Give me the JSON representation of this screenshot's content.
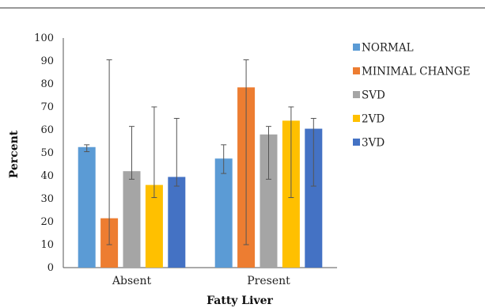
{
  "chart_data": {
    "type": "bar",
    "categories": [
      "Absent",
      "Present"
    ],
    "series": [
      {
        "name": "NORMAL",
        "color": "#5B9BD5",
        "values": [
          52.5,
          47.5
        ],
        "error_low": [
          50.5,
          41.0
        ],
        "error_high": [
          53.5,
          53.5
        ]
      },
      {
        "name": "MINIMAL CHANGE",
        "color": "#ED7D31",
        "values": [
          21.5,
          78.5
        ],
        "error_low": [
          10.0,
          10.0
        ],
        "error_high": [
          90.5,
          90.5
        ]
      },
      {
        "name": "SVD",
        "color": "#A5A5A5",
        "values": [
          42.0,
          58.0
        ],
        "error_low": [
          38.5,
          38.5
        ],
        "error_high": [
          61.5,
          61.5
        ]
      },
      {
        "name": "2VD",
        "color": "#FFC000",
        "values": [
          36.0,
          64.0
        ],
        "error_low": [
          30.5,
          30.5
        ],
        "error_high": [
          70.0,
          70.0
        ]
      },
      {
        "name": "3VD",
        "color": "#4472C4",
        "values": [
          39.5,
          60.5
        ],
        "error_low": [
          35.5,
          35.5
        ],
        "error_high": [
          65.0,
          65.0
        ]
      }
    ],
    "xlabel": "Fatty Liver",
    "ylabel": "Percent",
    "ylim": [
      0,
      100
    ],
    "yticks": [
      "0",
      "10",
      "20",
      "30",
      "40",
      "50",
      "60",
      "70",
      "80",
      "90",
      "100"
    ],
    "legend_position": "right",
    "grid": false
  }
}
